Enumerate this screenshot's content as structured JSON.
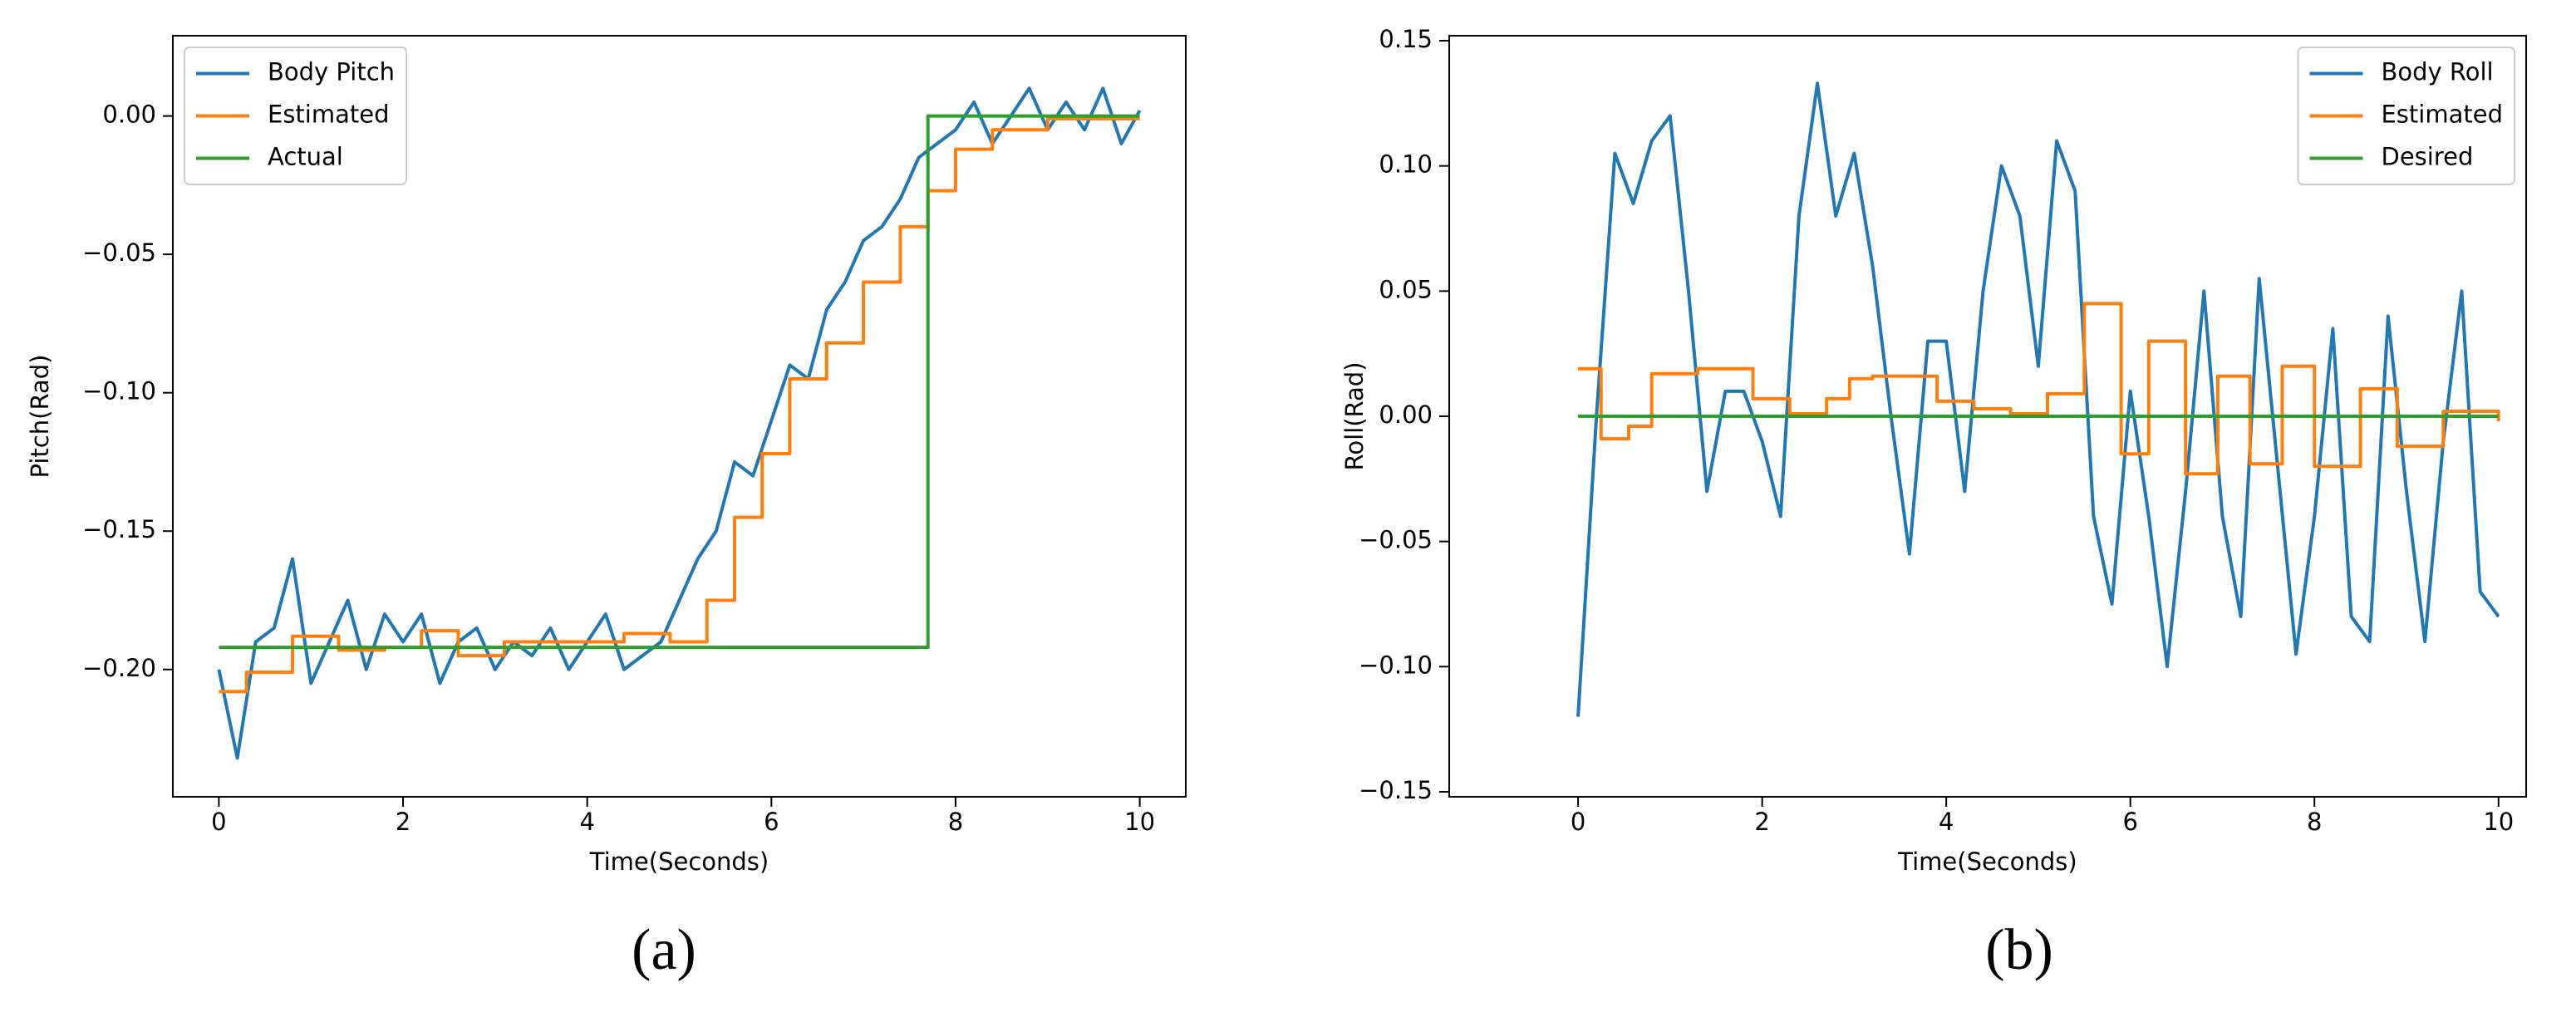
{
  "chart_data": [
    {
      "type": "line",
      "caption": "(a)",
      "xlabel": "Time(Seconds)",
      "ylabel": "Pitch(Rad)",
      "xlim": [
        -0.5,
        10.5
      ],
      "ylim": [
        -0.246,
        0.029
      ],
      "xticks": [
        0,
        2,
        4,
        6,
        8,
        10
      ],
      "yticks": [
        {
          "value": -0.2,
          "label": "−0.20"
        },
        {
          "value": -0.15,
          "label": "−0.15"
        },
        {
          "value": -0.1,
          "label": "−0.10"
        },
        {
          "value": -0.05,
          "label": "−0.05"
        },
        {
          "value": 0,
          "label": "0.00"
        }
      ],
      "grid": false,
      "legend": "upper left",
      "series": [
        {
          "name": "Body Pitch",
          "color": "#1f77b4",
          "drawstyle": "default",
          "x": [
            0,
            0.2,
            0.4,
            0.6,
            0.8,
            1.0,
            1.2,
            1.4,
            1.6,
            1.8,
            2.0,
            2.2,
            2.4,
            2.6,
            2.8,
            3.0,
            3.2,
            3.4,
            3.6,
            3.8,
            4.0,
            4.2,
            4.4,
            4.6,
            4.8,
            5.0,
            5.2,
            5.4,
            5.6,
            5.8,
            6.0,
            6.2,
            6.4,
            6.6,
            6.8,
            7.0,
            7.2,
            7.4,
            7.6,
            7.8,
            8.0,
            8.2,
            8.4,
            8.6,
            8.8,
            9.0,
            9.2,
            9.4,
            9.6,
            9.8,
            10.0
          ],
          "values": [
            -0.2,
            -0.232,
            -0.19,
            -0.185,
            -0.16,
            -0.205,
            -0.19,
            -0.175,
            -0.2,
            -0.18,
            -0.19,
            -0.18,
            -0.205,
            -0.19,
            -0.185,
            -0.2,
            -0.19,
            -0.195,
            -0.185,
            -0.2,
            -0.19,
            -0.18,
            -0.2,
            -0.195,
            -0.19,
            -0.175,
            -0.16,
            -0.15,
            -0.125,
            -0.13,
            -0.11,
            -0.09,
            -0.095,
            -0.07,
            -0.06,
            -0.045,
            -0.04,
            -0.03,
            -0.015,
            -0.01,
            -0.005,
            0.005,
            -0.01,
            0.0,
            0.01,
            -0.005,
            0.005,
            -0.005,
            0.01,
            -0.01,
            0.002
          ]
        },
        {
          "name": "Estimated",
          "color": "#ff7f0e",
          "drawstyle": "steps-post",
          "x": [
            0,
            0.3,
            0.8,
            1.3,
            1.8,
            2.2,
            2.6,
            3.1,
            3.6,
            4.4,
            4.9,
            5.3,
            5.6,
            5.9,
            6.2,
            6.6,
            7.0,
            7.4,
            7.7,
            8.0,
            8.4,
            9.0,
            10.0
          ],
          "values": [
            -0.208,
            -0.201,
            -0.188,
            -0.193,
            -0.192,
            -0.186,
            -0.195,
            -0.19,
            -0.19,
            -0.187,
            -0.19,
            -0.175,
            -0.145,
            -0.122,
            -0.095,
            -0.082,
            -0.06,
            -0.04,
            -0.027,
            -0.012,
            -0.005,
            -0.001,
            -0.001
          ]
        },
        {
          "name": "Actual",
          "color": "#2ca02c",
          "drawstyle": "steps-post",
          "x": [
            0,
            7.7,
            10
          ],
          "values": [
            -0.192,
            0,
            0
          ]
        }
      ]
    },
    {
      "type": "line",
      "caption": "(b)",
      "xlabel": "Time(Seconds)",
      "ylabel": "Roll(Rad)",
      "xlim": [
        -1.4,
        10.3
      ],
      "ylim": [
        -0.152,
        0.152
      ],
      "xticks": [
        0,
        2,
        4,
        6,
        8,
        10
      ],
      "yticks": [
        {
          "value": -0.15,
          "label": "−0.15"
        },
        {
          "value": -0.1,
          "label": "−0.10"
        },
        {
          "value": -0.05,
          "label": "−0.05"
        },
        {
          "value": 0,
          "label": "0.00"
        },
        {
          "value": 0.05,
          "label": "0.05"
        },
        {
          "value": 0.1,
          "label": "0.10"
        },
        {
          "value": 0.15,
          "label": "0.15"
        }
      ],
      "grid": false,
      "legend": "upper right",
      "series": [
        {
          "name": "Body Roll",
          "color": "#1f77b4",
          "drawstyle": "default",
          "x": [
            0,
            0.2,
            0.4,
            0.6,
            0.8,
            1.0,
            1.2,
            1.4,
            1.6,
            1.8,
            2.0,
            2.2,
            2.4,
            2.6,
            2.8,
            3.0,
            3.2,
            3.4,
            3.6,
            3.8,
            4.0,
            4.2,
            4.4,
            4.6,
            4.8,
            5.0,
            5.2,
            5.4,
            5.6,
            5.8,
            6.0,
            6.2,
            6.4,
            6.6,
            6.8,
            7.0,
            7.2,
            7.4,
            7.6,
            7.8,
            8.0,
            8.2,
            8.4,
            8.6,
            8.8,
            9.0,
            9.2,
            9.4,
            9.6,
            9.8,
            10.0
          ],
          "values": [
            -0.12,
            0.0,
            0.105,
            0.085,
            0.11,
            0.12,
            0.05,
            -0.03,
            0.01,
            0.01,
            -0.01,
            -0.04,
            0.08,
            0.133,
            0.08,
            0.105,
            0.06,
            0.0,
            -0.055,
            0.03,
            0.03,
            -0.03,
            0.05,
            0.1,
            0.08,
            0.02,
            0.11,
            0.09,
            -0.04,
            -0.075,
            0.01,
            -0.04,
            -0.1,
            -0.03,
            0.05,
            -0.04,
            -0.08,
            0.055,
            -0.02,
            -0.095,
            -0.04,
            0.035,
            -0.08,
            -0.09,
            0.04,
            -0.03,
            -0.09,
            -0.01,
            0.05,
            -0.07,
            -0.08
          ]
        },
        {
          "name": "Estimated",
          "color": "#ff7f0e",
          "drawstyle": "steps-post",
          "x": [
            0,
            0.25,
            0.55,
            0.8,
            1.3,
            1.9,
            2.3,
            2.7,
            2.95,
            3.2,
            3.9,
            4.3,
            4.7,
            5.1,
            5.5,
            5.9,
            6.2,
            6.6,
            6.95,
            7.3,
            7.65,
            8.0,
            8.5,
            8.9,
            9.4,
            10.0
          ],
          "values": [
            0.019,
            -0.009,
            -0.004,
            0.017,
            0.019,
            0.007,
            0.001,
            0.007,
            0.015,
            0.016,
            0.006,
            0.003,
            0.001,
            0.009,
            0.045,
            -0.015,
            0.03,
            -0.023,
            0.016,
            -0.019,
            0.02,
            -0.02,
            0.011,
            -0.012,
            0.002,
            -0.002
          ]
        },
        {
          "name": "Desired",
          "color": "#2ca02c",
          "drawstyle": "steps-post",
          "x": [
            0,
            10
          ],
          "values": [
            0,
            0
          ]
        }
      ]
    }
  ]
}
